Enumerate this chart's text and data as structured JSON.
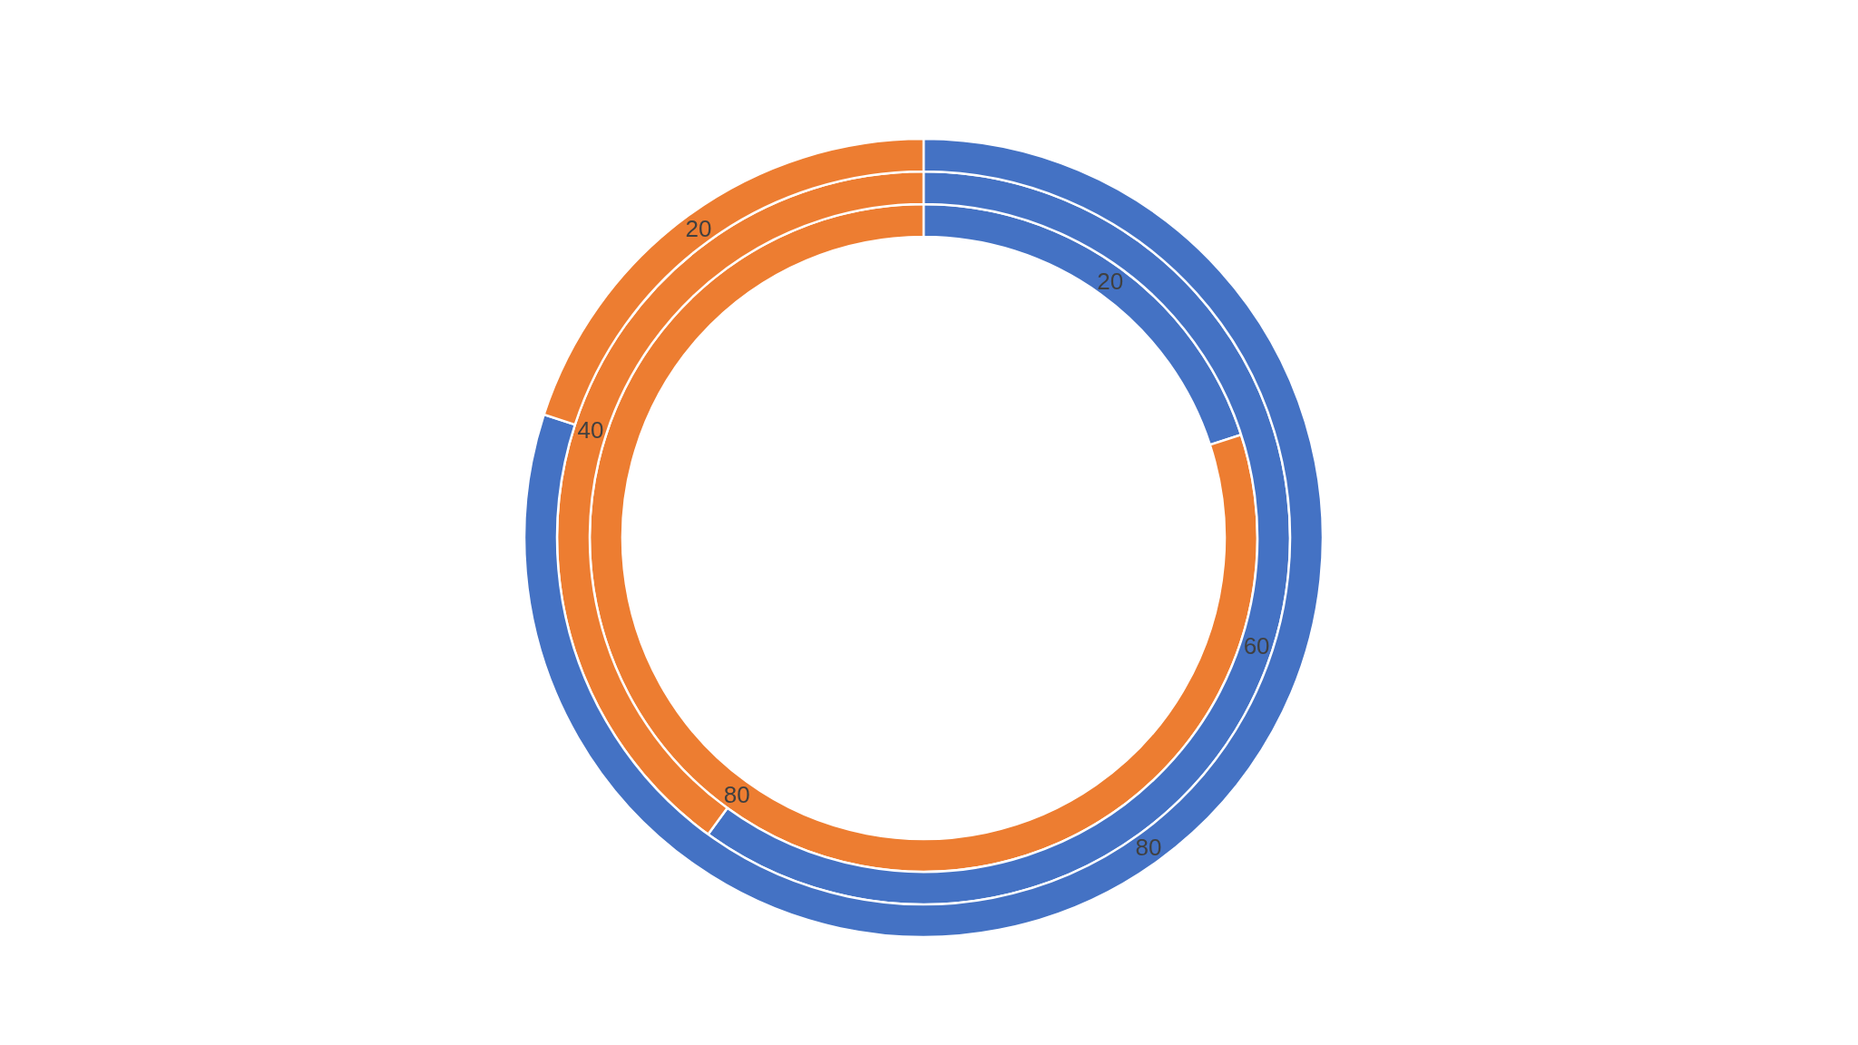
{
  "chart_data": {
    "type": "donut",
    "categories": [
      null,
      null
    ],
    "colors": [
      "#4472c4",
      "#ed7d31"
    ],
    "data_labels": true,
    "series": [
      {
        "values": [
          20,
          80
        ]
      },
      {
        "values": [
          60,
          40
        ]
      },
      {
        "values": [
          80,
          20
        ]
      }
    ]
  }
}
